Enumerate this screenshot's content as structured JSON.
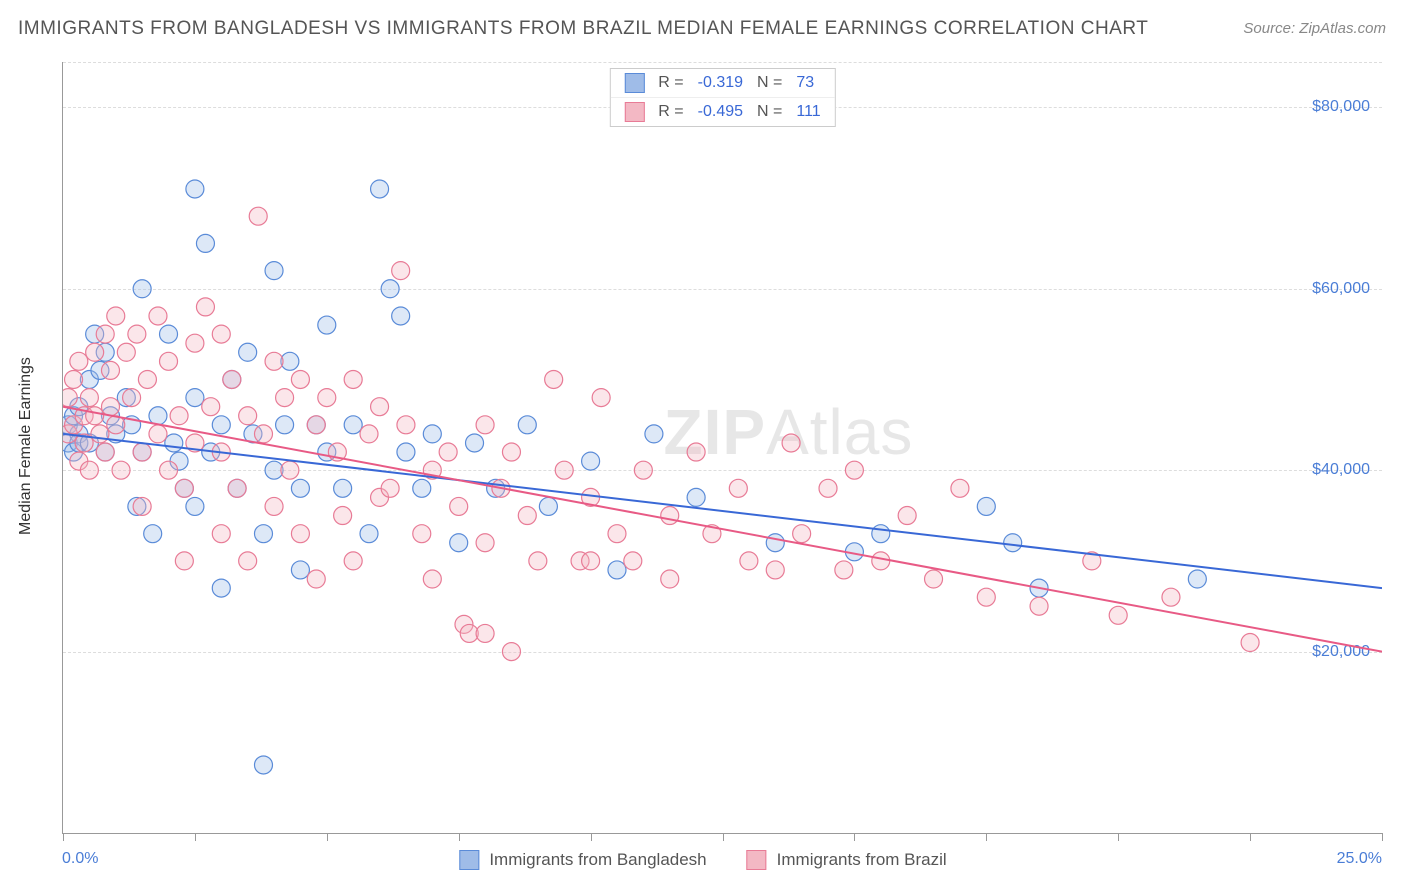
{
  "title": "IMMIGRANTS FROM BANGLADESH VS IMMIGRANTS FROM BRAZIL MEDIAN FEMALE EARNINGS CORRELATION CHART",
  "source_prefix": "Source: ",
  "source_link": "ZipAtlas.com",
  "watermark_bold": "ZIP",
  "watermark_rest": "Atlas",
  "y_axis_title": "Median Female Earnings",
  "chart": {
    "type": "scatter",
    "xlim": [
      0,
      25
    ],
    "ylim": [
      0,
      85000
    ],
    "x_left_label": "0.0%",
    "x_right_label": "25.0%",
    "y_ticks": [
      20000,
      40000,
      60000,
      80000
    ],
    "y_tick_labels": [
      "$20,000",
      "$40,000",
      "$60,000",
      "$80,000"
    ],
    "x_ticks": [
      0,
      2.5,
      5,
      7.5,
      10,
      12.5,
      15,
      17.5,
      20,
      22.5,
      25
    ],
    "grid_color": "#dddddd",
    "axis_color": "#999999",
    "background_color": "#ffffff",
    "point_radius": 9,
    "series": [
      {
        "name": "Immigrants from Bangladesh",
        "color_fill": "#9fbce8",
        "color_stroke": "#5a8bd8",
        "R": "-0.319",
        "N": "73",
        "trend": {
          "x1": 0,
          "y1": 44000,
          "x2": 25,
          "y2": 27000,
          "color": "#3968d6",
          "width": 2
        },
        "points": [
          [
            0.1,
            43000
          ],
          [
            0.1,
            45000
          ],
          [
            0.2,
            46000
          ],
          [
            0.2,
            42000
          ],
          [
            0.3,
            44000
          ],
          [
            0.3,
            47000
          ],
          [
            0.3,
            43000
          ],
          [
            0.5,
            50000
          ],
          [
            0.5,
            43000
          ],
          [
            0.6,
            55000
          ],
          [
            0.7,
            51000
          ],
          [
            0.8,
            42000
          ],
          [
            0.8,
            53000
          ],
          [
            0.9,
            46000
          ],
          [
            1.0,
            44000
          ],
          [
            1.2,
            48000
          ],
          [
            1.3,
            45000
          ],
          [
            1.4,
            36000
          ],
          [
            1.5,
            60000
          ],
          [
            1.5,
            42000
          ],
          [
            1.7,
            33000
          ],
          [
            1.8,
            46000
          ],
          [
            2.0,
            55000
          ],
          [
            2.1,
            43000
          ],
          [
            2.2,
            41000
          ],
          [
            2.3,
            38000
          ],
          [
            2.5,
            71000
          ],
          [
            2.5,
            48000
          ],
          [
            2.5,
            36000
          ],
          [
            2.7,
            65000
          ],
          [
            2.8,
            42000
          ],
          [
            3.0,
            45000
          ],
          [
            3.0,
            27000
          ],
          [
            3.2,
            50000
          ],
          [
            3.3,
            38000
          ],
          [
            3.5,
            53000
          ],
          [
            3.6,
            44000
          ],
          [
            3.8,
            33000
          ],
          [
            3.8,
            7500
          ],
          [
            4.0,
            62000
          ],
          [
            4.0,
            40000
          ],
          [
            4.2,
            45000
          ],
          [
            4.3,
            52000
          ],
          [
            4.5,
            38000
          ],
          [
            4.5,
            29000
          ],
          [
            4.8,
            45000
          ],
          [
            5.0,
            56000
          ],
          [
            5.0,
            42000
          ],
          [
            5.3,
            38000
          ],
          [
            5.5,
            45000
          ],
          [
            5.8,
            33000
          ],
          [
            6.0,
            71000
          ],
          [
            6.2,
            60000
          ],
          [
            6.4,
            57000
          ],
          [
            6.5,
            42000
          ],
          [
            6.8,
            38000
          ],
          [
            7.0,
            44000
          ],
          [
            7.5,
            32000
          ],
          [
            7.8,
            43000
          ],
          [
            8.2,
            38000
          ],
          [
            8.8,
            45000
          ],
          [
            9.2,
            36000
          ],
          [
            10.0,
            41000
          ],
          [
            10.5,
            29000
          ],
          [
            11.2,
            44000
          ],
          [
            12.0,
            37000
          ],
          [
            13.5,
            32000
          ],
          [
            15.0,
            31000
          ],
          [
            15.5,
            33000
          ],
          [
            17.5,
            36000
          ],
          [
            18.0,
            32000
          ],
          [
            18.5,
            27000
          ],
          [
            21.5,
            28000
          ]
        ]
      },
      {
        "name": "Immigrants from Brazil",
        "color_fill": "#f3b8c4",
        "color_stroke": "#e87b96",
        "R": "-0.495",
        "N": "111",
        "trend": {
          "x1": 0,
          "y1": 47000,
          "x2": 25,
          "y2": 20000,
          "color": "#e85a85",
          "width": 2
        },
        "points": [
          [
            0.1,
            48000
          ],
          [
            0.1,
            44000
          ],
          [
            0.2,
            50000
          ],
          [
            0.2,
            45000
          ],
          [
            0.3,
            52000
          ],
          [
            0.3,
            41000
          ],
          [
            0.4,
            46000
          ],
          [
            0.4,
            43000
          ],
          [
            0.5,
            48000
          ],
          [
            0.5,
            40000
          ],
          [
            0.6,
            53000
          ],
          [
            0.6,
            46000
          ],
          [
            0.7,
            44000
          ],
          [
            0.8,
            55000
          ],
          [
            0.8,
            42000
          ],
          [
            0.9,
            51000
          ],
          [
            0.9,
            47000
          ],
          [
            1.0,
            57000
          ],
          [
            1.0,
            45000
          ],
          [
            1.1,
            40000
          ],
          [
            1.2,
            53000
          ],
          [
            1.3,
            48000
          ],
          [
            1.4,
            55000
          ],
          [
            1.5,
            42000
          ],
          [
            1.5,
            36000
          ],
          [
            1.6,
            50000
          ],
          [
            1.8,
            57000
          ],
          [
            1.8,
            44000
          ],
          [
            2.0,
            52000
          ],
          [
            2.0,
            40000
          ],
          [
            2.2,
            46000
          ],
          [
            2.3,
            38000
          ],
          [
            2.3,
            30000
          ],
          [
            2.5,
            54000
          ],
          [
            2.5,
            43000
          ],
          [
            2.7,
            58000
          ],
          [
            2.8,
            47000
          ],
          [
            3.0,
            55000
          ],
          [
            3.0,
            42000
          ],
          [
            3.0,
            33000
          ],
          [
            3.2,
            50000
          ],
          [
            3.3,
            38000
          ],
          [
            3.5,
            46000
          ],
          [
            3.5,
            30000
          ],
          [
            3.7,
            68000
          ],
          [
            3.8,
            44000
          ],
          [
            4.0,
            52000
          ],
          [
            4.0,
            36000
          ],
          [
            4.2,
            48000
          ],
          [
            4.3,
            40000
          ],
          [
            4.5,
            50000
          ],
          [
            4.5,
            33000
          ],
          [
            4.8,
            45000
          ],
          [
            4.8,
            28000
          ],
          [
            5.0,
            48000
          ],
          [
            5.2,
            42000
          ],
          [
            5.3,
            35000
          ],
          [
            5.5,
            50000
          ],
          [
            5.5,
            30000
          ],
          [
            5.8,
            44000
          ],
          [
            6.0,
            47000
          ],
          [
            6.0,
            37000
          ],
          [
            6.2,
            38000
          ],
          [
            6.4,
            62000
          ],
          [
            6.5,
            45000
          ],
          [
            6.8,
            33000
          ],
          [
            7.0,
            40000
          ],
          [
            7.0,
            28000
          ],
          [
            7.3,
            42000
          ],
          [
            7.5,
            36000
          ],
          [
            7.6,
            23000
          ],
          [
            7.7,
            22000
          ],
          [
            8.0,
            45000
          ],
          [
            8.0,
            32000
          ],
          [
            8.0,
            22000
          ],
          [
            8.3,
            38000
          ],
          [
            8.5,
            42000
          ],
          [
            8.5,
            20000
          ],
          [
            8.8,
            35000
          ],
          [
            9.0,
            30000
          ],
          [
            9.3,
            50000
          ],
          [
            9.5,
            40000
          ],
          [
            9.8,
            30000
          ],
          [
            10.0,
            37000
          ],
          [
            10.0,
            30000
          ],
          [
            10.2,
            48000
          ],
          [
            10.5,
            33000
          ],
          [
            10.8,
            30000
          ],
          [
            11.0,
            40000
          ],
          [
            11.5,
            35000
          ],
          [
            11.5,
            28000
          ],
          [
            12.0,
            42000
          ],
          [
            12.3,
            33000
          ],
          [
            12.8,
            38000
          ],
          [
            13.0,
            30000
          ],
          [
            13.5,
            29000
          ],
          [
            13.8,
            43000
          ],
          [
            14.0,
            33000
          ],
          [
            14.5,
            38000
          ],
          [
            14.8,
            29000
          ],
          [
            15.0,
            40000
          ],
          [
            15.5,
            30000
          ],
          [
            16.0,
            35000
          ],
          [
            16.5,
            28000
          ],
          [
            17.0,
            38000
          ],
          [
            17.5,
            26000
          ],
          [
            18.5,
            25000
          ],
          [
            19.5,
            30000
          ],
          [
            20.0,
            24000
          ],
          [
            21.0,
            26000
          ],
          [
            22.5,
            21000
          ]
        ]
      }
    ]
  },
  "legend_top": {
    "R_label": "R =",
    "N_label": "N ="
  },
  "bottom_legend": [
    {
      "label": "Immigrants from Bangladesh",
      "fill": "#9fbce8",
      "stroke": "#5a8bd8"
    },
    {
      "label": "Immigrants from Brazil",
      "fill": "#f3b8c4",
      "stroke": "#e87b96"
    }
  ]
}
